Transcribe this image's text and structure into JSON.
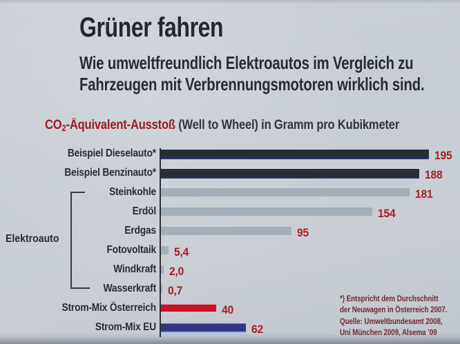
{
  "page": {
    "title": "Grüner fahren",
    "subtitle_line1": "Wie umweltfreundlich Elektroautos im Vergleich zu",
    "subtitle_line2": "Fahrzeugen mit Verbrennungsmotoren wirklich sind."
  },
  "caption": {
    "prefix": "CO",
    "subscript": "2",
    "red_rest": "-Äquivalent-Ausstoß",
    "dark_rest": "(Well to Wheel) in Gramm pro Kubikmeter"
  },
  "chart_data": {
    "type": "bar",
    "orientation": "horizontal",
    "title": "CO2-Äquivalent-Ausstoß (Well to Wheel) in Gramm pro Kubikmeter",
    "categories": [
      "Beispiel Dieselauto*",
      "Beispiel Benzinauto*",
      "Steinkohle",
      "Erdöl",
      "Erdgas",
      "Fotovoltaik",
      "Windkraft",
      "Wasserkraft",
      "Strom-Mix Österreich",
      "Strom-Mix EU"
    ],
    "values": [
      195,
      188,
      181,
      154,
      95,
      5.4,
      2.0,
      0.7,
      40,
      62
    ],
    "value_labels": [
      "195",
      "188",
      "181",
      "154",
      "95",
      "5,4",
      "2,0",
      "0,7",
      "40",
      "62"
    ],
    "bar_color_keys": [
      "dark",
      "dark",
      "gray",
      "gray",
      "gray",
      "gray",
      "gray",
      "gray",
      "red",
      "blue"
    ],
    "xlim": [
      0,
      200
    ],
    "grid": false,
    "legend": false,
    "group_label": "Elektroauto",
    "group_span": [
      "Steinkohle",
      "Wasserkraft"
    ]
  },
  "footnote": {
    "lines": [
      "*) Entspricht dem Durchschnitt",
      "der Neuwagen in Österreich 2007.",
      "Quelle: Umweltbundesamt 2008,",
      "Uni München 2009, Alsema ’09"
    ]
  },
  "colors": {
    "background": "#c7cdd4",
    "text_dark": "#2a2a33",
    "caption_red": "#9e1b26",
    "value_red": "#ab1c26",
    "footnote_red": "#6f2b2f",
    "bar_dark": "#282c33",
    "bar_gray": "#a4afb9",
    "bar_red": "#c41326",
    "bar_blue": "#343489",
    "axis": "#2f2f36"
  }
}
